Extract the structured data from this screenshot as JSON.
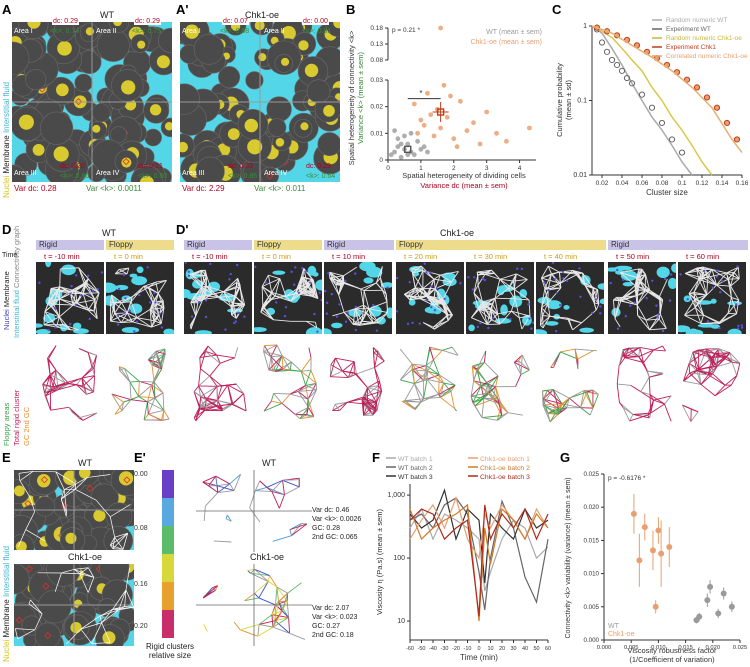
{
  "colors": {
    "fluid": "#52d6e8",
    "cell": "#4a4a4a",
    "nucleus": "#f2e22a",
    "membrane": "#e8e8e8",
    "rigid_cluster": "#c01e5a",
    "floppy_edges": "#3aa64a",
    "gc2": "#e6922e",
    "wt": "#9a9a9a",
    "chk": "#e8a070",
    "chk_dark": "#c23b1a"
  },
  "panelA": {
    "letter": "A",
    "title": "WT",
    "side_nuclei": "Nuclei",
    "side_membrane": "Membrane",
    "side_fluid": "Interstitial fluid",
    "area1": "Area I",
    "area2": "Area II",
    "area3": "Area III",
    "area4": "Area IV",
    "dc1": "dc: 0.29",
    "k1": "<k>: 0.74",
    "dc2": "dc: 0.29",
    "k2": "<k>: 0.75",
    "dc3": "dc: 0.20",
    "k3": "<k>: 0.80",
    "dc4": "dc: 0.21",
    "k4": "<k>: 0.80",
    "var_dc": "Var dc: 0.28",
    "var_k": "Var <k>: 0.0011"
  },
  "panelA2": {
    "letter": "A'",
    "title": "Chk1-oe",
    "area1": "Area I",
    "area2": "Area II",
    "area3": "Area III",
    "area4": "Area IV",
    "dc1": "dc: 0.07",
    "k1": "<k>: 0.68",
    "dc2": "dc: 0.00",
    "k2": "<k>: 0.81",
    "dc3": "dc: 0.33",
    "k3": "<k>: 0.86",
    "dc4": "dc: 0.29",
    "k4": "<k>: 0.64",
    "var_dc": "Var dc: 2.29",
    "var_k": "Var <k>: 0.011"
  },
  "panelB": {
    "letter": "B",
    "legend_wt": "WT (mean ± sem)",
    "legend_chk": "Chk1-oe (mean ± sem)",
    "pvalue": "p = 0.21 *",
    "star": "*",
    "ylabel1": "Spatial heterogeneity of connectivity <k>",
    "ylabel2": "Variance <k> (mean ± sem)",
    "xlabel1": "Spatial heterogeneity of dividing cells",
    "xlabel2": "Variance dc (mean ± sem)"
  },
  "panelC": {
    "letter": "C",
    "legend": [
      "Random numeric WT",
      "Experiment WT",
      "Random numeric Chk1-oe",
      "Experiment Chk1",
      "Correlated numeric Chk1-oe"
    ],
    "ylabel1": "Cumulative probability",
    "ylabel2": "(mean ± sd)",
    "xlabel": "Cluster size"
  },
  "panelD": {
    "letter": "D",
    "title": "WT",
    "states": [
      "Rigid",
      "Floppy"
    ],
    "times": [
      "t = -10 min",
      "t = 0 min"
    ],
    "side_time": "Time",
    "side_nuclei": "Nuclei",
    "side_membrane": "Membrane",
    "side_fluid": "Interstitial fluid",
    "side_conn": "Connectivity graph",
    "side_floppy": "Floppy areas",
    "side_rigid": "Total rigid cluster",
    "side_gc": "GC 2nd GC"
  },
  "panelD2": {
    "letter": "D'",
    "title": "Chk1-oe",
    "states": [
      "Rigid",
      "Floppy",
      "Rigid",
      "Floppy",
      "Rigid"
    ],
    "times": [
      "t = -10 min",
      "t = 0 min",
      "t = 10 min",
      "t = 20 min",
      "t = 30 min",
      "t = 40 min",
      "t = 50 min",
      "t = 60 min"
    ]
  },
  "panelE": {
    "letter": "E",
    "wt": "WT",
    "chk": "Chk1-oe",
    "side_nuclei": "Nuclei",
    "side_membrane": "Membrane",
    "side_fluid": "Interstitial fluid"
  },
  "panelE2": {
    "letter": "E'",
    "wt": "WT",
    "chk": "Chk1-oe",
    "scale_ticks": [
      "0.00",
      "0.08",
      "0.16",
      "0.20"
    ],
    "scale_label1": "Rigid clusters",
    "scale_label2": "relative size",
    "wt_var_dc": "Var dc: 0.46",
    "wt_var_k": "Var <k>: 0.0026",
    "wt_gc": "GC: 0.28",
    "wt_gc2": "2nd GC: 0.065",
    "chk_var_dc": "Var dc: 2.07",
    "chk_var_k": "Var <k>: 0.023",
    "chk_gc": "GC: 0.27",
    "chk_gc2": "2nd GC: 0.18"
  },
  "panelF": {
    "letter": "F",
    "legend": [
      "WT batch 1",
      "WT batch 2",
      "WT batch 3",
      "Chk1-oe batch 1",
      "Chk1-oe batch 2",
      "Chk1-oe batch 3"
    ],
    "ylabel": "Viscosity η (Pa.s) (mean ± sem)",
    "xlabel": "Time (min)",
    "yticks": [
      "10",
      "100",
      "1,000"
    ],
    "xticks": [
      "-60",
      "-50",
      "-40",
      "-30",
      "-20",
      "-10",
      "0",
      "10",
      "20",
      "30",
      "40",
      "50",
      "60"
    ]
  },
  "panelG": {
    "letter": "G",
    "pvalue": "p = -0.6176 *",
    "legend_wt": "WT",
    "legend_chk": "Chk1-oe",
    "ylabel1": "Connectivity <k> variability (variance) (mean ± sem)",
    "xlabel1": "Viscosity robustness factor",
    "xlabel2": "(1/Coefficient of variation)",
    "yticks": [
      "0.000",
      "0.005",
      "0.010",
      "0.015",
      "0.020",
      "0.025"
    ],
    "xticks": [
      "0.000",
      "0.005",
      "0.010",
      "0.015",
      "0.020",
      "0.025"
    ]
  },
  "chart_data": [
    {
      "id": "B",
      "type": "scatter",
      "xlabel": "Spatial heterogeneity of dividing cells Variance dc (mean ± sem)",
      "ylabel": "Spatial heterogeneity of connectivity <k> Variance <k> (mean ± sem)",
      "xlim": [
        0,
        4.5
      ],
      "yticks": [
        0,
        0.01,
        0.02,
        0.03,
        0.08,
        0.13,
        0.18
      ],
      "xticks": [
        0,
        1,
        2,
        3,
        4
      ],
      "series": [
        {
          "name": "WT (mean ± sem)",
          "points": [
            [
              0.1,
              0.002
            ],
            [
              0.2,
              0.003
            ],
            [
              0.3,
              0.005
            ],
            [
              0.4,
              0.001
            ],
            [
              0.5,
              0.004
            ],
            [
              0.6,
              0.006
            ],
            [
              0.7,
              0.003
            ],
            [
              0.8,
              0.002
            ],
            [
              0.9,
              0.007
            ],
            [
              1.0,
              0.004
            ],
            [
              0.3,
              0.008
            ],
            [
              0.5,
              0.009
            ],
            [
              0.2,
              0.011
            ],
            [
              0.7,
              0.01
            ],
            [
              1.1,
              0.005
            ],
            [
              1.2,
              0.003
            ],
            [
              0.4,
              0.006
            ],
            [
              0.6,
              0.002
            ]
          ],
          "mean": [
            0.6,
            0.004
          ]
        },
        {
          "name": "Chk1-oe (mean ± sem)",
          "points": [
            [
              0.8,
              0.021
            ],
            [
              1.0,
              0.015
            ],
            [
              1.2,
              0.025
            ],
            [
              1.4,
              0.009
            ],
            [
              1.5,
              0.019
            ],
            [
              1.6,
              0.012
            ],
            [
              1.7,
              0.028
            ],
            [
              1.8,
              0.016
            ],
            [
              2.0,
              0.008
            ],
            [
              2.2,
              0.022
            ],
            [
              2.4,
              0.011
            ],
            [
              2.6,
              0.014
            ],
            [
              2.8,
              0.006
            ],
            [
              3.0,
              0.018
            ],
            [
              3.3,
              0.01
            ],
            [
              3.6,
              0.007
            ],
            [
              4.3,
              0.012
            ],
            [
              1.1,
              0.013
            ],
            [
              1.9,
              0.024
            ],
            [
              2.1,
              0.005
            ],
            [
              0.9,
              0.01
            ],
            [
              1.3,
              0.017
            ],
            [
              1.6,
              0.18
            ]
          ],
          "mean": [
            1.6,
            0.018
          ]
        }
      ]
    },
    {
      "id": "C",
      "type": "line",
      "xlabel": "Cluster size",
      "ylabel": "Cumulative probability (mean ± sd)",
      "xlim": [
        0.01,
        0.16
      ],
      "ylog": true,
      "ylim": [
        0.01,
        1
      ],
      "xticks": [
        0.02,
        0.04,
        0.06,
        0.08,
        0.1,
        0.12,
        0.14,
        0.16
      ],
      "series": [
        {
          "name": "Random numeric WT",
          "x": [
            0.01,
            0.02,
            0.03,
            0.04,
            0.05,
            0.06,
            0.07,
            0.08,
            0.09,
            0.1,
            0.11
          ],
          "y": [
            1,
            0.8,
            0.5,
            0.3,
            0.17,
            0.1,
            0.06,
            0.04,
            0.025,
            0.015,
            0.01
          ]
        },
        {
          "name": "Experiment WT",
          "x": [
            0.015,
            0.02,
            0.025,
            0.03,
            0.035,
            0.04,
            0.045,
            0.05,
            0.06,
            0.07,
            0.08,
            0.09,
            0.1
          ],
          "y": [
            0.9,
            0.6,
            0.45,
            0.35,
            0.3,
            0.25,
            0.2,
            0.17,
            0.12,
            0.08,
            0.05,
            0.03,
            0.02
          ]
        },
        {
          "name": "Random numeric Chk1-oe",
          "x": [
            0.01,
            0.02,
            0.03,
            0.04,
            0.05,
            0.06,
            0.07,
            0.08,
            0.09,
            0.1,
            0.11,
            0.12,
            0.13
          ],
          "y": [
            1,
            0.85,
            0.7,
            0.5,
            0.35,
            0.25,
            0.15,
            0.1,
            0.06,
            0.04,
            0.025,
            0.015,
            0.01
          ]
        },
        {
          "name": "Experiment Chk1",
          "x": [
            0.015,
            0.025,
            0.035,
            0.045,
            0.055,
            0.065,
            0.075,
            0.085,
            0.095,
            0.105,
            0.115,
            0.125,
            0.135,
            0.145,
            0.155
          ],
          "y": [
            0.95,
            0.85,
            0.75,
            0.65,
            0.55,
            0.45,
            0.37,
            0.3,
            0.24,
            0.19,
            0.15,
            0.11,
            0.08,
            0.05,
            0.03
          ]
        },
        {
          "name": "Correlated numeric Chk1-oe",
          "x": [
            0.01,
            0.03,
            0.05,
            0.07,
            0.09,
            0.11,
            0.13,
            0.15,
            0.16
          ],
          "y": [
            1,
            0.8,
            0.55,
            0.38,
            0.25,
            0.15,
            0.08,
            0.03,
            0.02
          ]
        }
      ]
    },
    {
      "id": "F",
      "type": "line",
      "xlabel": "Time (min)",
      "ylabel": "Viscosity η (Pa.s) (mean ± sem)",
      "ylog": true,
      "ylim": [
        5,
        1500
      ],
      "xlim": [
        -60,
        60
      ],
      "x": [
        -60,
        -50,
        -40,
        -30,
        -20,
        -10,
        0,
        5,
        10,
        20,
        30,
        40,
        50,
        60
      ],
      "series": [
        {
          "name": "WT batch 1",
          "y": [
            300,
            600,
            200,
            500,
            400,
            300,
            200,
            30,
            60,
            200,
            400,
            300,
            100,
            150
          ]
        },
        {
          "name": "WT batch 2",
          "y": [
            400,
            500,
            300,
            700,
            900,
            500,
            60,
            15,
            100,
            800,
            300,
            50,
            20,
            200
          ]
        },
        {
          "name": "WT batch 3",
          "y": [
            500,
            300,
            400,
            1200,
            200,
            600,
            400,
            40,
            500,
            300,
            200,
            600,
            300,
            400
          ]
        },
        {
          "name": "Chk1-oe batch 1",
          "y": [
            200,
            400,
            700,
            300,
            900,
            200,
            100,
            500,
            300,
            700,
            400,
            200,
            600,
            300
          ]
        },
        {
          "name": "Chk1-oe batch 2",
          "y": [
            600,
            200,
            300,
            400,
            500,
            700,
            10,
            300,
            80,
            600,
            400,
            200,
            500,
            300
          ]
        },
        {
          "name": "Chk1-oe batch 3",
          "y": [
            400,
            600,
            500,
            200,
            300,
            400,
            12,
            700,
            200,
            500,
            300,
            600,
            200,
            500
          ]
        }
      ]
    },
    {
      "id": "G",
      "type": "scatter",
      "xlabel": "Viscosity robustness factor (1/Coefficient of variation)",
      "ylabel": "Connectivity <k> variability (variance) (mean ± sem)",
      "xlim": [
        0,
        0.025
      ],
      "ylim": [
        0,
        0.025
      ],
      "series": [
        {
          "name": "Chk1-oe",
          "points": [
            [
              0.0055,
              0.019
            ],
            [
              0.0065,
              0.012
            ],
            [
              0.0075,
              0.017
            ],
            [
              0.009,
              0.0135
            ],
            [
              0.0095,
              0.005
            ],
            [
              0.01,
              0.0165
            ],
            [
              0.0105,
              0.013
            ],
            [
              0.012,
              0.014
            ]
          ]
        },
        {
          "name": "WT",
          "points": [
            [
              0.017,
              0.003
            ],
            [
              0.0175,
              0.0035
            ],
            [
              0.019,
              0.006
            ],
            [
              0.0195,
              0.008
            ],
            [
              0.021,
              0.004
            ],
            [
              0.022,
              0.007
            ],
            [
              0.0235,
              0.005
            ]
          ]
        }
      ]
    }
  ]
}
